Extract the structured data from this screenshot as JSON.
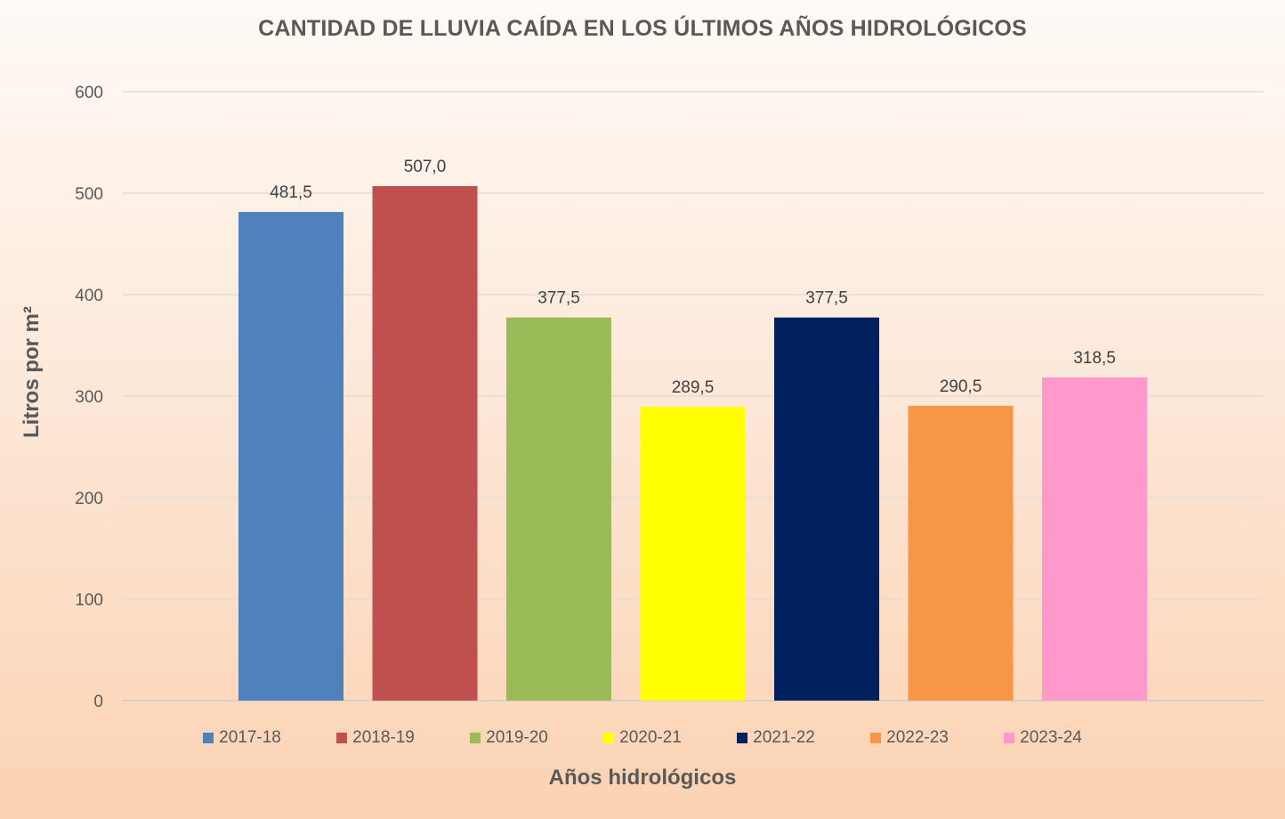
{
  "chart_data": {
    "type": "bar",
    "title": "CANTIDAD DE LLUVIA CAÍDA EN LOS ÚLTIMOS AÑOS HIDROLÓGICOS",
    "xlabel": "Años hidrológicos",
    "ylabel": "Litros por m²",
    "ylim": [
      0,
      600
    ],
    "yticks": [
      "0",
      "100",
      "200",
      "300",
      "400",
      "500",
      "600"
    ],
    "grid": true,
    "legend_position": "bottom",
    "categories": [
      "2017-18",
      "2018-19",
      "2019-20",
      "2020-21",
      "2021-22",
      "2022-23",
      "2023-24"
    ],
    "values": [
      481.5,
      507.0,
      377.5,
      289.5,
      377.5,
      290.5,
      318.5
    ],
    "value_labels": [
      "481,5",
      "507,0",
      "377,5",
      "289,5",
      "377,5",
      "290,5",
      "318,5"
    ],
    "colors": [
      "#4f81bd",
      "#c0504d",
      "#9bbb59",
      "#ffff00",
      "#002060",
      "#f79646",
      "#ff99cc"
    ]
  }
}
